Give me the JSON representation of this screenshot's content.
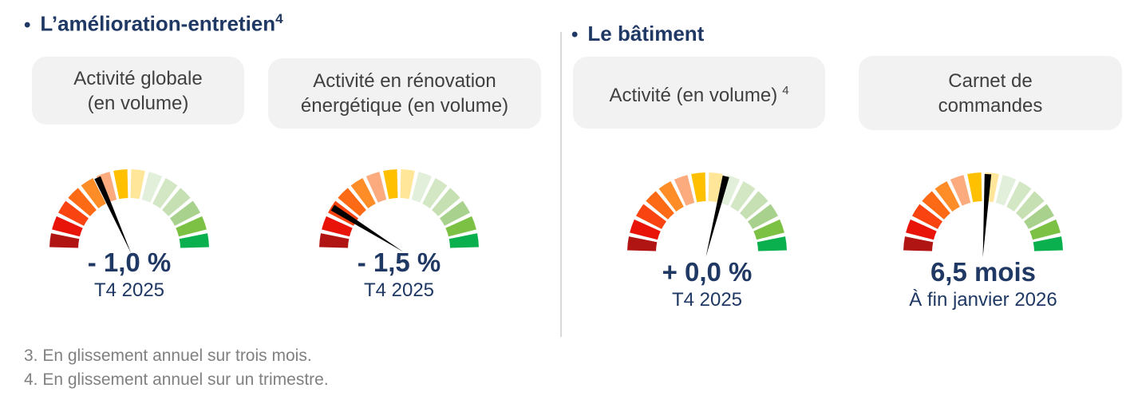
{
  "sections": [
    {
      "bullet": "•",
      "title": "L’amélioration-entretien",
      "title_sup": "4"
    },
    {
      "bullet": "•",
      "title": "Le bâtiment",
      "title_sup": ""
    }
  ],
  "gauges": [
    {
      "label_line1": "Activité globale",
      "label_line2": "(en volume)",
      "label_sup": "",
      "value": "- 1,0 %",
      "subtext": "T4 2025",
      "needle_angle_deg": 114
    },
    {
      "label_line1": "Activité en rénovation",
      "label_line2": "énergétique (en volume)",
      "label_sup": "",
      "value": "- 1,5 %",
      "subtext": "T4 2025",
      "needle_angle_deg": 148
    },
    {
      "label_line1": "Activité (en volume)",
      "label_line2": "",
      "label_sup": "4",
      "value": "+ 0,0 %",
      "subtext": "T4 2025",
      "needle_angle_deg": 76
    },
    {
      "label_line1": "Carnet de",
      "label_line2": "commandes",
      "label_sup": "",
      "value": "6,5 mois",
      "subtext": "À fin janvier 2026",
      "needle_angle_deg": 86.5
    }
  ],
  "gauge_style": {
    "segment_colors": [
      "#b01513",
      "#e81309",
      "#f94311",
      "#fd6a16",
      "#fe8d28",
      "#fbab7e",
      "#ffc000",
      "#ffe699",
      "#e2efda",
      "#d4e7c5",
      "#c6e0b4",
      "#a9d18e",
      "#7cc143",
      "#0ab04e"
    ],
    "gap_deg": 2.8,
    "needle_color": "#000000",
    "needle_length": 98,
    "needle_half_width": 4.2
  },
  "footnotes": {
    "line1": "3. En glissement annuel sur trois mois.",
    "line2": "4. En glissement annuel sur un trimestre."
  },
  "colors": {
    "navy_text": "#1f3864",
    "label_bg": "#f2f2f2",
    "label_text": "#404040",
    "footnote_text": "#808080",
    "divider": "#d9d9d9"
  },
  "chart_data": [
    {
      "type": "gauge",
      "group": "L’amélioration-entretien",
      "title": "Activité globale (en volume)",
      "value_label": "- 1,0 %",
      "value_numeric": -1.0,
      "unit": "%",
      "period": "T4 2025",
      "scale": "rouge (négatif) → vert (positif), 14 segments sur 180°",
      "needle_zone": "orange, légèrement négatif"
    },
    {
      "type": "gauge",
      "group": "L’amélioration-entretien",
      "title": "Activité en rénovation énergétique (en volume)",
      "value_label": "- 1,5 %",
      "value_numeric": -1.5,
      "unit": "%",
      "period": "T4 2025",
      "scale": "rouge (négatif) → vert (positif), 14 segments sur 180°",
      "needle_zone": "rouge, négatif"
    },
    {
      "type": "gauge",
      "group": "Le bâtiment",
      "title": "Activité (en volume)",
      "value_label": "+ 0,0 %",
      "value_numeric": 0.0,
      "unit": "%",
      "period": "T4 2025",
      "scale": "rouge (négatif) → vert (positif), 14 segments sur 180°",
      "needle_zone": "neutre, juste à droite du centre"
    },
    {
      "type": "gauge",
      "group": "Le bâtiment",
      "title": "Carnet de commandes",
      "value_label": "6,5 mois",
      "value_numeric": 6.5,
      "unit": "mois",
      "period": "À fin janvier 2026",
      "scale": "rouge (faible) → vert (élevé), 14 segments sur 180°",
      "needle_zone": "neutre, quasi vertical"
    }
  ]
}
